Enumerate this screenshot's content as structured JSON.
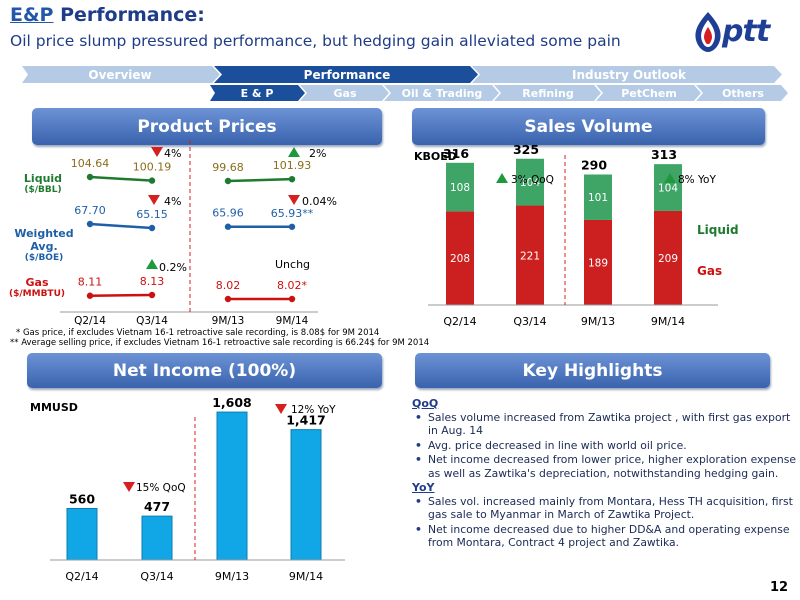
{
  "header": {
    "title_ep": "E&P",
    "title_rest": " Performance:",
    "subtitle": "Oil price slump pressured performance, but hedging gain alleviated some pain",
    "logo_text": "ptt"
  },
  "nav": {
    "top": [
      "Overview",
      "Performance",
      "Industry Outlook"
    ],
    "sub": [
      "E & P",
      "Gas",
      "Oil & Trading",
      "Refining",
      "PetChem",
      "Others"
    ]
  },
  "sections": {
    "product_prices": "Product Prices",
    "sales_volume": "Sales Volume",
    "net_income": "Net Income (100%)",
    "key_highlights": "Key Highlights"
  },
  "colors": {
    "nav_light": "#b5cbe5",
    "nav_dark": "#1b4e9b",
    "liquid": "#1e7a2f",
    "weighted": "#1e5fa8",
    "gas": "#cc1111",
    "bar_green": "#3ea566",
    "bar_red": "#cc1f1f",
    "bar_cyan": "#11a7e6",
    "arrow_up": "#1e9a3c",
    "arrow_down": "#d62020"
  },
  "product_prices": {
    "row_labels": {
      "liquid": "Liquid",
      "liquid_unit": "($/BBL)",
      "weighted": "Weighted Avg.",
      "weighted_unit": "($/BOE)",
      "gas": "Gas",
      "gas_unit": "($/MMBTU)"
    },
    "changes": {
      "liquid_qoq": "4%",
      "liquid_yoy": "2%",
      "weighted_qoq": "4%",
      "weighted_yoy": "0.04%",
      "gas_qoq": "0.2%",
      "gas_yoy": "Unchg"
    },
    "footnotes": [
      "* Gas price, if excludes Vietnam 16-1 retroactive sale recording, is 8.08$ for 9M 2014",
      "** Average selling price, if excludes Vietnam 16-1 retroactive sale recording is 66.24$ for 9M 2014"
    ]
  },
  "chart_data": [
    {
      "type": "line",
      "title": "Product Prices",
      "categories": [
        "Q2/14",
        "Q3/14",
        "9M/13",
        "9M/14"
      ],
      "series": [
        {
          "name": "Liquid ($/BBL)",
          "values": [
            104.64,
            100.19,
            99.68,
            101.93
          ],
          "labels": [
            "104.64",
            "100.19",
            "99.68",
            "101.93"
          ]
        },
        {
          "name": "Weighted Avg. ($/BOE)",
          "values": [
            67.7,
            65.15,
            65.96,
            65.93
          ],
          "labels": [
            "67.70",
            "65.15",
            "65.96",
            "65.93**"
          ]
        },
        {
          "name": "Gas ($/MMBTU)",
          "values": [
            8.11,
            8.13,
            8.02,
            8.02
          ],
          "labels": [
            "8.11",
            "8.13",
            "8.02",
            "8.02*"
          ]
        }
      ]
    },
    {
      "type": "bar",
      "title": "Sales Volume",
      "unit": "KBOED",
      "categories": [
        "Q2/14",
        "Q3/14",
        "9M/13",
        "9M/14"
      ],
      "series": [
        {
          "name": "Gas",
          "values": [
            208,
            221,
            189,
            209
          ]
        },
        {
          "name": "Liquid",
          "values": [
            108,
            104,
            101,
            104
          ]
        }
      ],
      "totals": [
        316,
        325,
        290,
        313
      ],
      "annotations": [
        "3% QoQ",
        "8% YoY"
      ],
      "stacked": true
    },
    {
      "type": "bar",
      "title": "Net Income (100%)",
      "unit": "MMUSD",
      "categories": [
        "Q2/14",
        "Q3/14",
        "9M/13",
        "9M/14"
      ],
      "values": [
        560,
        477,
        1608,
        1417
      ],
      "labels": [
        "560",
        "477",
        "1,608",
        "1,417"
      ],
      "annotations": [
        "15% QoQ",
        "12% YoY"
      ]
    }
  ],
  "key_highlights": {
    "qoq_head": "QoQ",
    "qoq_items": [
      "Sales volume increased from Zawtika project , with first gas export in Aug. 14",
      "Avg. price decreased  in line with world oil price.",
      "Net income decreased from lower price, higher exploration expense as well as Zawtika's depreciation, notwithstanding hedging gain."
    ],
    "yoy_head": "YoY",
    "yoy_items": [
      "Sales vol. increased mainly from Montara, Hess TH acquisition, first gas sale to Myanmar in March of Zawtika Project.",
      "Net income decreased due to higher DD&A and operating expense from Montara, Contract 4 project and Zawtika."
    ]
  },
  "page_number": "12"
}
